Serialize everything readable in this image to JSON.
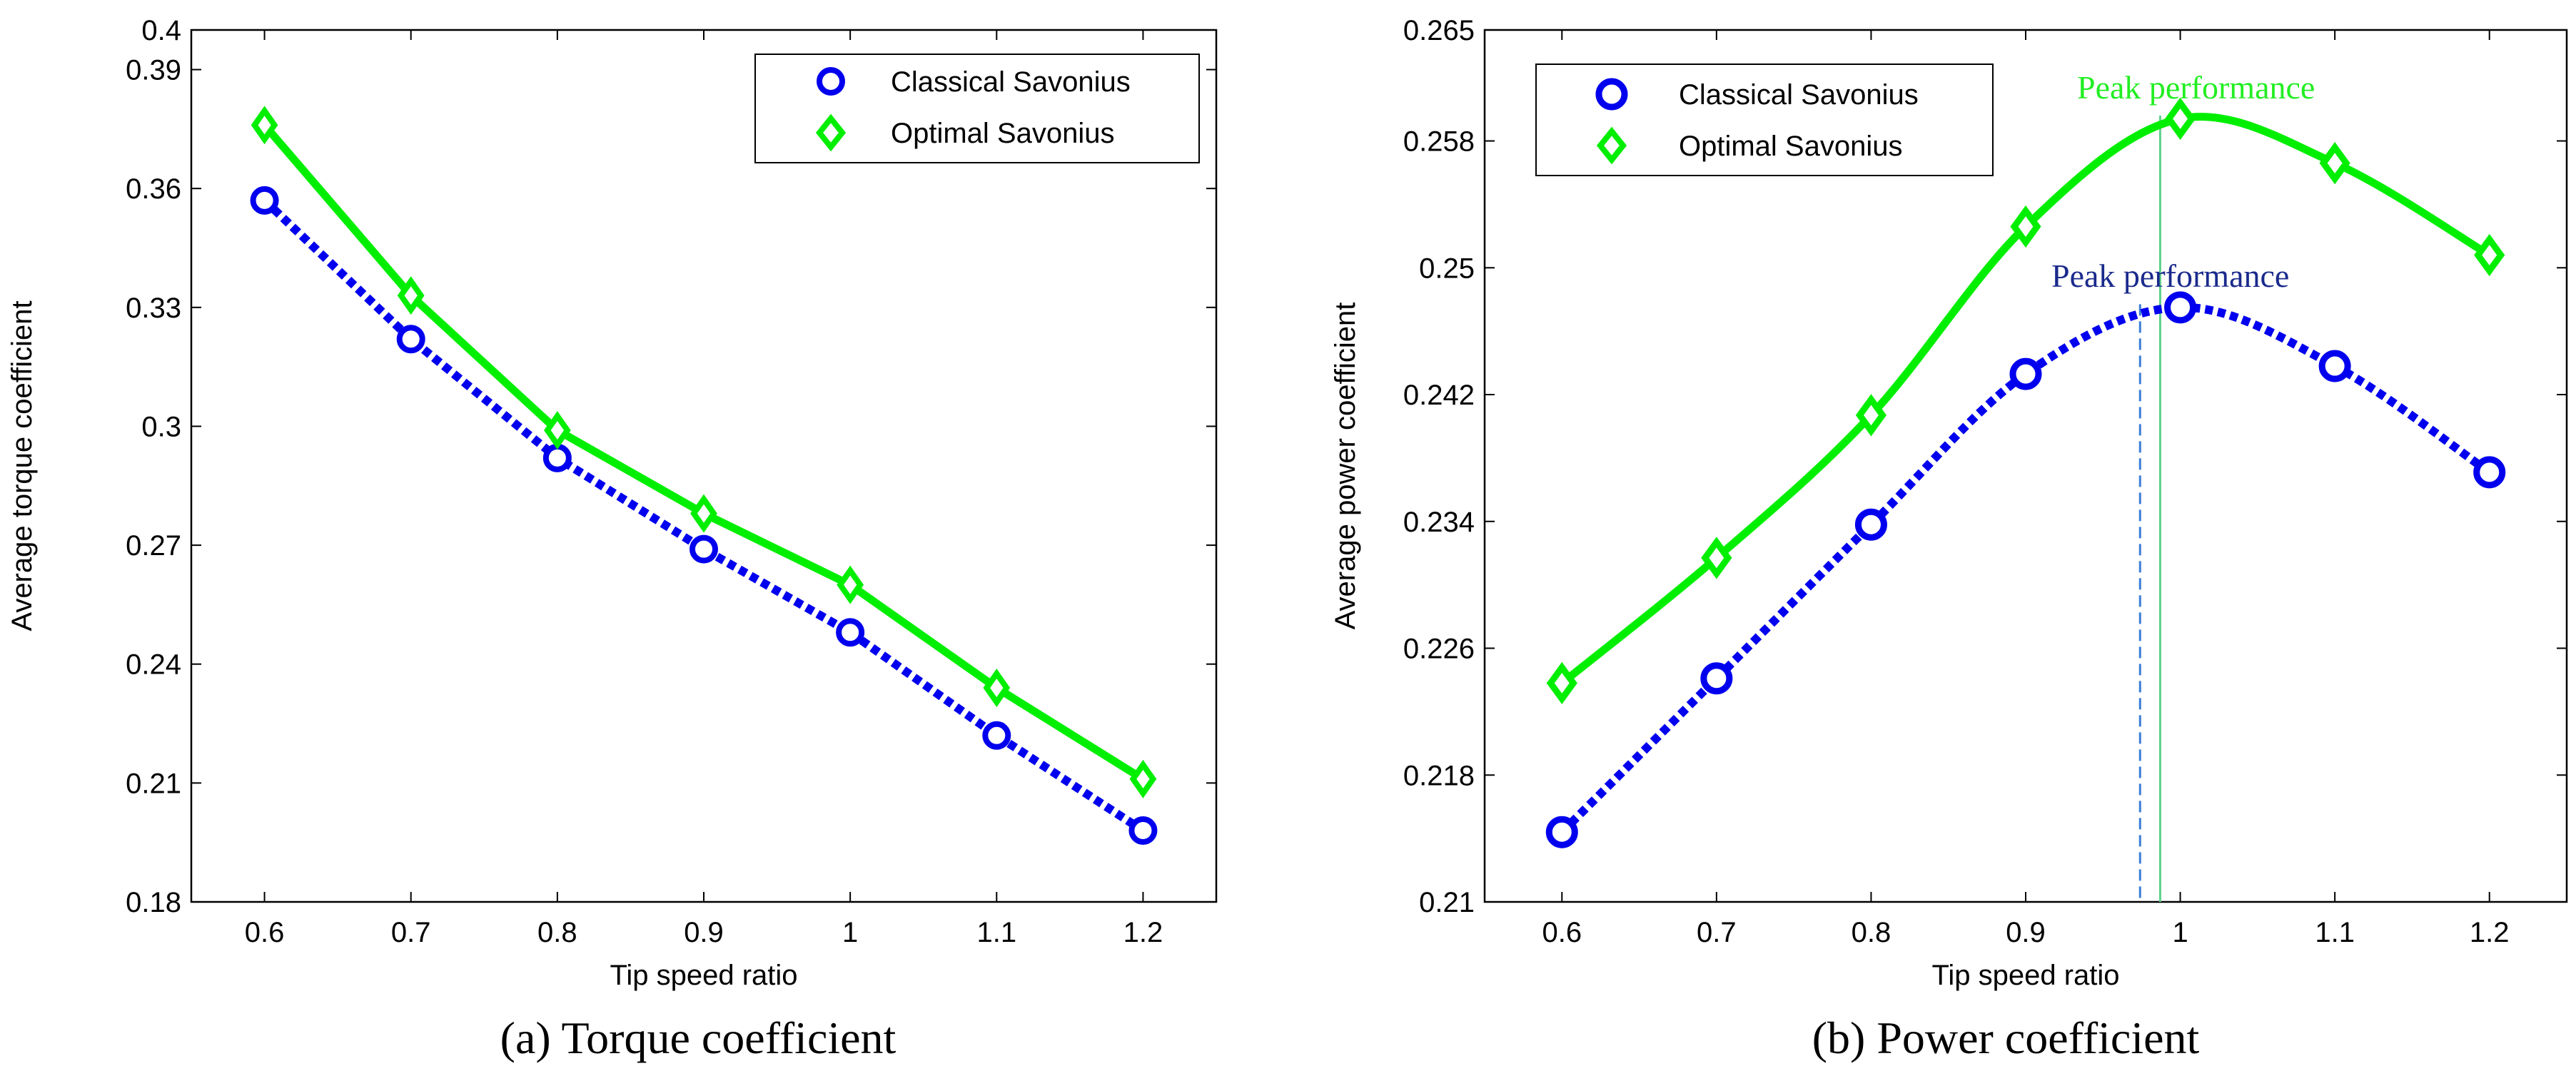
{
  "chart_data": [
    {
      "type": "line",
      "xlabel": "Tip speed ratio",
      "ylabel": "Average torque coefficient",
      "caption": "(a) Torque coefficient",
      "xlim": [
        0.55,
        1.25
      ],
      "ylim": [
        0.18,
        0.4
      ],
      "xticks": [
        0.6,
        0.7,
        0.8,
        0.9,
        1.0,
        1.1,
        1.2
      ],
      "xtick_labels": [
        "0.6",
        "0.7",
        "0.8",
        "0.9",
        "1",
        "1.1",
        "1.2"
      ],
      "yticks": [
        0.18,
        0.21,
        0.24,
        0.27,
        0.3,
        0.33,
        0.36,
        0.39,
        0.4
      ],
      "ytick_labels": [
        "0.18",
        "0.21",
        "0.24",
        "0.27",
        "0.3",
        "0.33",
        "0.36",
        "0.39",
        "0.4"
      ],
      "legend_position": "top-right",
      "series": [
        {
          "name": "Classical Savonius",
          "color": "#0000ee",
          "marker": "circle",
          "line": "dotted",
          "x": [
            0.6,
            0.7,
            0.8,
            0.9,
            1.0,
            1.1,
            1.2
          ],
          "values": [
            0.357,
            0.322,
            0.292,
            0.269,
            0.248,
            0.222,
            0.198
          ]
        },
        {
          "name": "Optimal Savonius",
          "color": "#00ee00",
          "marker": "diamond",
          "line": "solid",
          "x": [
            0.6,
            0.7,
            0.8,
            0.9,
            1.0,
            1.1,
            1.2
          ],
          "values": [
            0.376,
            0.333,
            0.299,
            0.278,
            0.26,
            0.234,
            0.211
          ]
        }
      ],
      "annotations": []
    },
    {
      "type": "line",
      "xlabel": "Tip speed ratio",
      "ylabel": "Average power coefficient",
      "caption": "(b) Power coefficient",
      "xlim": [
        0.55,
        1.25
      ],
      "ylim": [
        0.21,
        0.265
      ],
      "xticks": [
        0.6,
        0.7,
        0.8,
        0.9,
        1.0,
        1.1,
        1.2
      ],
      "xtick_labels": [
        "0.6",
        "0.7",
        "0.8",
        "0.9",
        "1",
        "1.1",
        "1.2"
      ],
      "yticks": [
        0.21,
        0.218,
        0.226,
        0.234,
        0.242,
        0.25,
        0.258,
        0.265
      ],
      "ytick_labels": [
        "0.21",
        "0.218",
        "0.226",
        "0.234",
        "0.242",
        "0.25",
        "0.258",
        "0.265"
      ],
      "legend_position": "top-left",
      "series": [
        {
          "name": "Classical Savonius",
          "color": "#0000ee",
          "marker": "circle",
          "line": "dotted",
          "x": [
            0.6,
            0.7,
            0.8,
            0.9,
            1.0,
            1.1,
            1.2
          ],
          "values": [
            0.2144,
            0.2241,
            0.2338,
            0.2433,
            0.2475,
            0.2438,
            0.2371
          ]
        },
        {
          "name": "Optimal Savonius",
          "color": "#00ee00",
          "marker": "diamond",
          "line": "solid",
          "x": [
            0.6,
            0.7,
            0.8,
            0.9,
            1.0,
            1.1,
            1.2
          ],
          "values": [
            0.2238,
            0.2317,
            0.2407,
            0.2526,
            0.2594,
            0.2566,
            0.2508
          ]
        }
      ],
      "annotations": [
        {
          "text": "Peak performance",
          "color": "#22ee22",
          "x": 0.987,
          "y": 0.2596,
          "marker_line": "solid"
        },
        {
          "text": "Peak performance",
          "color": "#1a2a8c",
          "x": 0.974,
          "y": 0.2477,
          "marker_line": "dashed"
        }
      ]
    }
  ]
}
